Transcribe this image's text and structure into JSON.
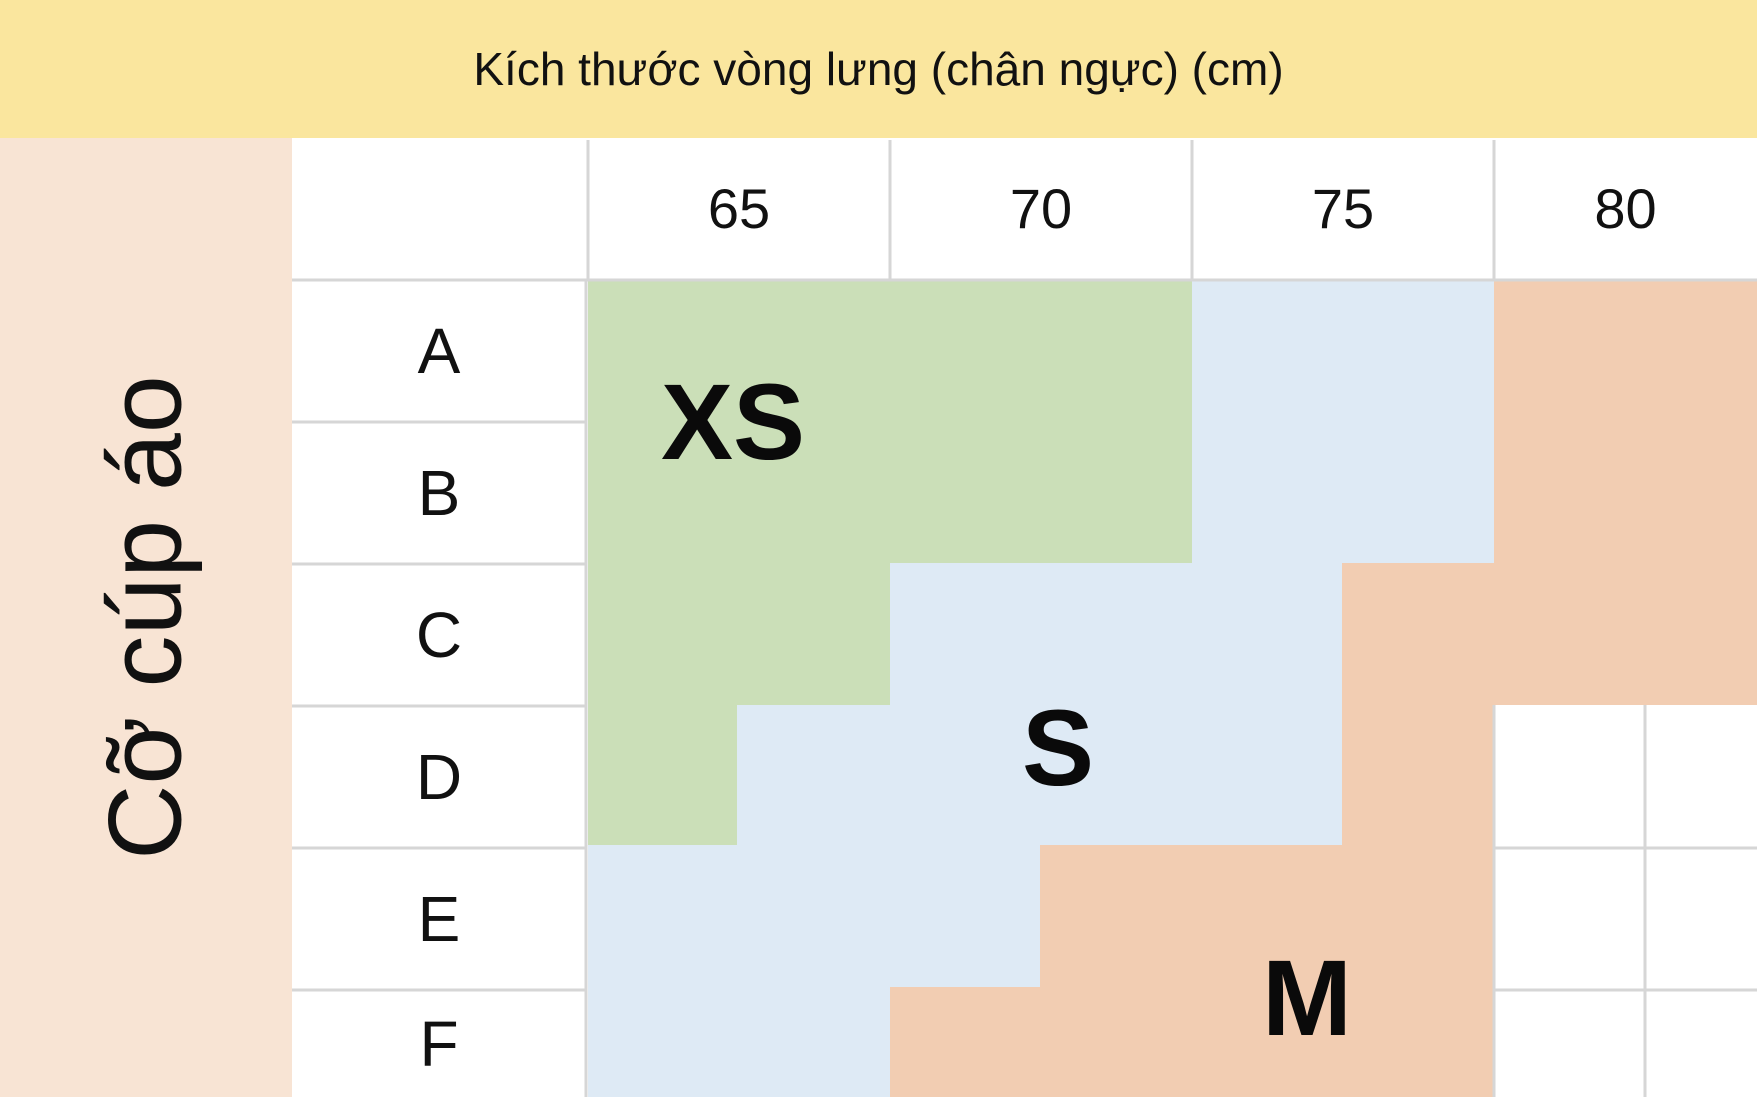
{
  "header": {
    "band_label": "Kích thước vòng lưng (chân ngực) (cm)",
    "cup_label": "Cỡ cúp áo"
  },
  "chart_data": {
    "type": "table",
    "columns": [
      "65",
      "70",
      "75",
      "80"
    ],
    "rows": [
      "A",
      "B",
      "C",
      "D",
      "E",
      "F"
    ],
    "size_labels": {
      "xs": "XS",
      "s": "S",
      "m": "M"
    },
    "colors": {
      "xs": "#cbdfb8",
      "s": "#deeaf5",
      "m": "#f2cdb2",
      "header_top": "#fae69e",
      "header_side": "#f8e4d4",
      "grid": "#d6d6d6"
    }
  }
}
